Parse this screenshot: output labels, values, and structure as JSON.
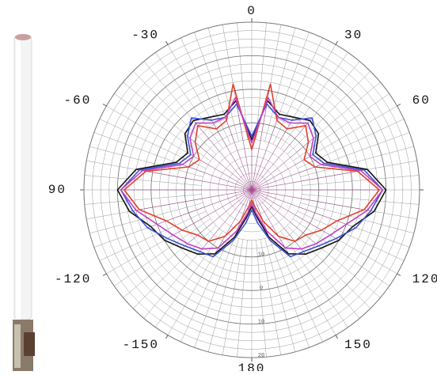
{
  "chart_data": {
    "type": "polar",
    "rlim": [
      -30,
      20
    ],
    "rticks": [
      {
        "value": -10,
        "label": "10"
      },
      0,
      10,
      20
    ],
    "angle_ticks": [
      0,
      30,
      60,
      {
        "value": 90,
        "label": "90"
      },
      120,
      150,
      180,
      -150,
      -120,
      {
        "value": -90,
        "label": "90"
      },
      -60,
      -30
    ],
    "grid": true,
    "x": [
      -180,
      -170,
      -160,
      -150,
      -140,
      -130,
      -120,
      -110,
      -100,
      -90,
      -80,
      -70,
      -60,
      -50,
      -40,
      -30,
      -20,
      -10,
      0,
      10,
      20,
      30,
      40,
      50,
      60,
      70,
      80,
      90,
      100,
      110,
      120,
      130,
      140,
      150,
      160,
      170
    ],
    "series": [
      {
        "color": "#111111",
        "values": [
          -25,
          -22,
          -15,
          -8,
          -5,
          -3,
          0,
          2,
          7,
          10,
          5,
          -6,
          -8,
          -4,
          -3,
          -5,
          -6,
          -3,
          -15,
          -3,
          -6,
          -5,
          -3,
          -4,
          -8,
          -6,
          5,
          10,
          7,
          2,
          0,
          -3,
          -5,
          -8,
          -15,
          -22
        ]
      },
      {
        "color": "#3b4fd8",
        "values": [
          -24,
          -20,
          -14,
          -7,
          -6,
          -4,
          -1,
          3,
          6,
          9,
          4,
          -7,
          -9,
          -5,
          -2,
          -6,
          -7,
          -4,
          -14,
          -4,
          -7,
          -6,
          -2,
          -5,
          -9,
          -7,
          4,
          9,
          6,
          3,
          -1,
          -4,
          -6,
          -7,
          -14,
          -20
        ]
      },
      {
        "color": "#e0402a",
        "values": [
          -27,
          -25,
          -20,
          -14,
          -10,
          -9,
          -6,
          -3,
          4,
          8,
          2,
          -10,
          -12,
          -8,
          -5,
          -9,
          -8,
          2,
          -18,
          2,
          -8,
          -9,
          -5,
          -8,
          -12,
          -10,
          2,
          8,
          4,
          -3,
          -6,
          -9,
          -10,
          -14,
          -20,
          -25
        ]
      },
      {
        "color": "#c040c0",
        "values": [
          -26,
          -23,
          -17,
          -10,
          -7,
          -5,
          -3,
          0,
          5,
          9,
          3,
          -8,
          -10,
          -6,
          -4,
          -7,
          -7,
          -2,
          -16,
          -2,
          -7,
          -7,
          -4,
          -6,
          -10,
          -8,
          3,
          9,
          5,
          0,
          -3,
          -5,
          -7,
          -10,
          -17,
          -23
        ]
      }
    ]
  }
}
